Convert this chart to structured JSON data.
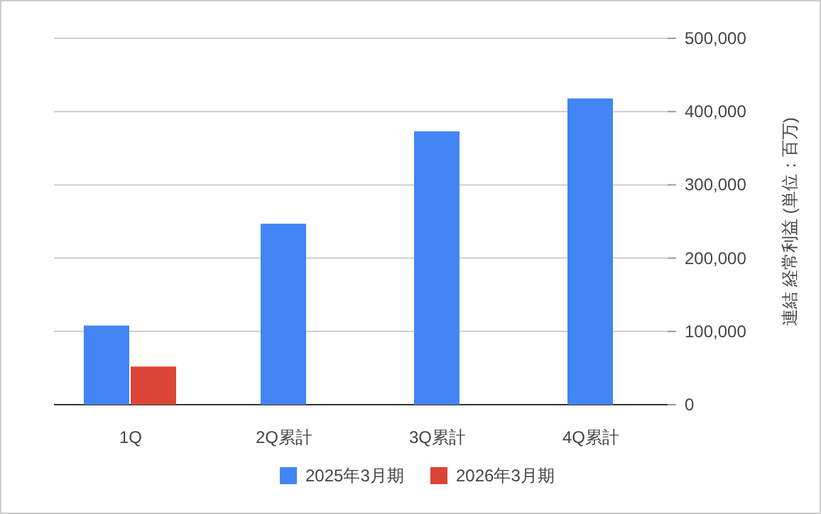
{
  "chart_data": {
    "type": "bar",
    "ylabel": "連結 経常利益 (単位：百万)",
    "categories": [
      "1Q",
      "2Q累計",
      "3Q累計",
      "4Q累計"
    ],
    "series": [
      {
        "name": "2025年3月期",
        "color": "#4285f4",
        "values": [
          108000,
          247000,
          373000,
          418000
        ]
      },
      {
        "name": "2026年3月期",
        "color": "#db4437",
        "values": [
          52000,
          null,
          null,
          null
        ]
      }
    ],
    "ylim": [
      0,
      500000
    ],
    "yticks": [
      {
        "value": 0,
        "label": "0"
      },
      {
        "value": 100000,
        "label": "100,000"
      },
      {
        "value": 200000,
        "label": "200,000"
      },
      {
        "value": 300000,
        "label": "300,000"
      },
      {
        "value": 400000,
        "label": "400,000"
      },
      {
        "value": 500000,
        "label": "500,000"
      }
    ],
    "grid": true,
    "legend": "bottom"
  }
}
